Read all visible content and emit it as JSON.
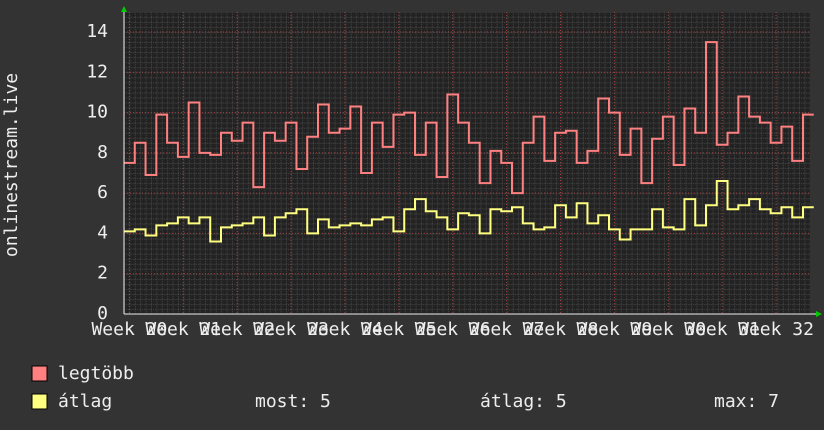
{
  "chart_data": {
    "type": "line",
    "ylabel": "onlinestream.live",
    "x": [
      19.9,
      20.1,
      20.3,
      20.5,
      20.7,
      20.9,
      21.1,
      21.3,
      21.5,
      21.7,
      21.9,
      22.1,
      22.3,
      22.5,
      22.7,
      22.9,
      23.1,
      23.3,
      23.5,
      23.7,
      23.9,
      24.1,
      24.3,
      24.5,
      24.7,
      24.9,
      25.1,
      25.3,
      25.5,
      25.7,
      25.9,
      26.1,
      26.3,
      26.5,
      26.7,
      26.9,
      27.1,
      27.3,
      27.5,
      27.7,
      27.9,
      28.1,
      28.3,
      28.5,
      28.7,
      28.9,
      29.1,
      29.3,
      29.5,
      29.7,
      29.9,
      30.1,
      30.3,
      30.5,
      30.7,
      30.9,
      31.1,
      31.3,
      31.5,
      31.7,
      31.9,
      32.1,
      32.3,
      32.5
    ],
    "series": [
      {
        "name": "legtöbb",
        "color": "#ff8080",
        "values": [
          7.5,
          8.5,
          6.9,
          9.9,
          8.5,
          7.8,
          10.5,
          8.0,
          7.9,
          9.0,
          8.6,
          9.5,
          6.3,
          9.0,
          8.6,
          9.5,
          7.2,
          8.8,
          10.4,
          9.0,
          9.2,
          10.3,
          7.0,
          9.5,
          8.3,
          9.9,
          10.0,
          7.9,
          9.5,
          6.8,
          10.9,
          9.5,
          8.5,
          6.5,
          8.1,
          7.5,
          6.0,
          8.5,
          9.8,
          7.6,
          9.0,
          9.1,
          7.5,
          8.1,
          10.7,
          10.0,
          7.9,
          9.2,
          6.5,
          8.7,
          9.8,
          7.4,
          10.2,
          9.0,
          13.5,
          8.4,
          9.0,
          10.8,
          9.8,
          9.5,
          8.5,
          9.3,
          7.6,
          9.9
        ]
      },
      {
        "name": "átlag",
        "color": "#ffff80",
        "values": [
          4.1,
          4.2,
          3.9,
          4.4,
          4.5,
          4.8,
          4.5,
          4.8,
          3.6,
          4.3,
          4.4,
          4.5,
          4.8,
          3.9,
          4.8,
          5.0,
          5.2,
          4.0,
          4.7,
          4.3,
          4.4,
          4.5,
          4.4,
          4.7,
          4.8,
          4.1,
          5.2,
          5.7,
          5.1,
          4.8,
          4.2,
          5.0,
          4.9,
          4.0,
          5.2,
          5.1,
          5.3,
          4.5,
          4.2,
          4.3,
          5.4,
          4.8,
          5.5,
          4.5,
          4.9,
          4.2,
          3.7,
          4.2,
          4.2,
          5.2,
          4.3,
          4.2,
          5.7,
          4.4,
          5.4,
          6.6,
          5.2,
          5.4,
          5.7,
          5.2,
          5.0,
          5.3,
          4.8,
          5.3
        ]
      }
    ],
    "xlim": [
      19.9,
      32.63
    ],
    "xticks": [
      {
        "value": 20,
        "label": "Week 20"
      },
      {
        "value": 21,
        "label": "Week 21"
      },
      {
        "value": 22,
        "label": "Week 22"
      },
      {
        "value": 23,
        "label": "Week 23"
      },
      {
        "value": 24,
        "label": "Week 24"
      },
      {
        "value": 25,
        "label": "Week 25"
      },
      {
        "value": 26,
        "label": "Week 26"
      },
      {
        "value": 27,
        "label": "Week 27"
      },
      {
        "value": 28,
        "label": "Week 28"
      },
      {
        "value": 29,
        "label": "Week 29"
      },
      {
        "value": 30,
        "label": "Week 30"
      },
      {
        "value": 31,
        "label": "Week 31"
      },
      {
        "value": 32,
        "label": "Week 32"
      }
    ],
    "ylim": [
      0,
      14
    ],
    "yticks": [
      0,
      2,
      4,
      6,
      8,
      10,
      12,
      14
    ],
    "grid": true,
    "stats": [
      "most: 5",
      "átlag: 5",
      "max: 7"
    ]
  }
}
